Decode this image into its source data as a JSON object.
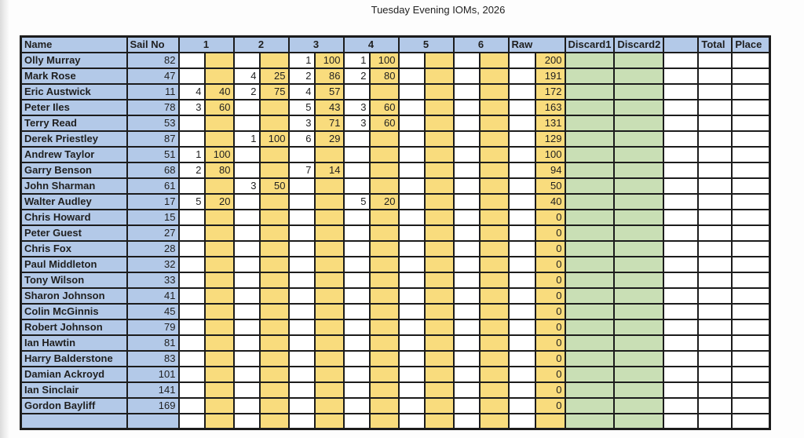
{
  "title": "Tuesday Evening IOMs, 2026",
  "colors": {
    "header_blue": "#b3c9e8",
    "points_yellow": "#f9dc7d",
    "discard_green": "#c9dfb5",
    "grid": "#1c1c1c"
  },
  "table": {
    "headers": {
      "name": "Name",
      "sail_no": "Sail No",
      "races": [
        "1",
        "2",
        "3",
        "4",
        "5",
        "6"
      ],
      "raw": "Raw",
      "discard1": "Discard1",
      "discard2": "Discard2",
      "spacer": "",
      "total": "Total",
      "place": "Place"
    },
    "rows": [
      {
        "name": "Olly Murray",
        "sail_no": "82",
        "races": [
          [
            "",
            ""
          ],
          [
            "",
            ""
          ],
          [
            "1",
            "100"
          ],
          [
            "1",
            "100"
          ],
          [
            "",
            ""
          ],
          [
            "",
            ""
          ]
        ],
        "raw": "200",
        "discard1": "",
        "discard2": "",
        "total": "",
        "place": ""
      },
      {
        "name": "Mark Rose",
        "sail_no": "47",
        "races": [
          [
            "",
            ""
          ],
          [
            "4",
            "25"
          ],
          [
            "2",
            "86"
          ],
          [
            "2",
            "80"
          ],
          [
            "",
            ""
          ],
          [
            "",
            ""
          ]
        ],
        "raw": "191",
        "discard1": "",
        "discard2": "",
        "total": "",
        "place": ""
      },
      {
        "name": "Eric Austwick",
        "sail_no": "11",
        "races": [
          [
            "4",
            "40"
          ],
          [
            "2",
            "75"
          ],
          [
            "4",
            "57"
          ],
          [
            "",
            ""
          ],
          [
            "",
            ""
          ],
          [
            "",
            ""
          ]
        ],
        "raw": "172",
        "discard1": "",
        "discard2": "",
        "total": "",
        "place": ""
      },
      {
        "name": "Peter Iles",
        "sail_no": "78",
        "races": [
          [
            "3",
            "60"
          ],
          [
            "",
            ""
          ],
          [
            "5",
            "43"
          ],
          [
            "3",
            "60"
          ],
          [
            "",
            ""
          ],
          [
            "",
            ""
          ]
        ],
        "raw": "163",
        "discard1": "",
        "discard2": "",
        "total": "",
        "place": ""
      },
      {
        "name": "Terry Read",
        "sail_no": "53",
        "races": [
          [
            "",
            ""
          ],
          [
            "",
            ""
          ],
          [
            "3",
            "71"
          ],
          [
            "3",
            "60"
          ],
          [
            "",
            ""
          ],
          [
            "",
            ""
          ]
        ],
        "raw": "131",
        "discard1": "",
        "discard2": "",
        "total": "",
        "place": ""
      },
      {
        "name": "Derek Priestley",
        "sail_no": "87",
        "races": [
          [
            "",
            ""
          ],
          [
            "1",
            "100"
          ],
          [
            "6",
            "29"
          ],
          [
            "",
            ""
          ],
          [
            "",
            ""
          ],
          [
            "",
            ""
          ]
        ],
        "raw": "129",
        "discard1": "",
        "discard2": "",
        "total": "",
        "place": ""
      },
      {
        "name": "Andrew Taylor",
        "sail_no": "51",
        "races": [
          [
            "1",
            "100"
          ],
          [
            "",
            ""
          ],
          [
            "",
            ""
          ],
          [
            "",
            ""
          ],
          [
            "",
            ""
          ],
          [
            "",
            ""
          ]
        ],
        "raw": "100",
        "discard1": "",
        "discard2": "",
        "total": "",
        "place": ""
      },
      {
        "name": "Garry Benson",
        "sail_no": "68",
        "races": [
          [
            "2",
            "80"
          ],
          [
            "",
            ""
          ],
          [
            "7",
            "14"
          ],
          [
            "",
            ""
          ],
          [
            "",
            ""
          ],
          [
            "",
            ""
          ]
        ],
        "raw": "94",
        "discard1": "",
        "discard2": "",
        "total": "",
        "place": ""
      },
      {
        "name": "John Sharman",
        "sail_no": "61",
        "races": [
          [
            "",
            ""
          ],
          [
            "3",
            "50"
          ],
          [
            "",
            ""
          ],
          [
            "",
            ""
          ],
          [
            "",
            ""
          ],
          [
            "",
            ""
          ]
        ],
        "raw": "50",
        "discard1": "",
        "discard2": "",
        "total": "",
        "place": ""
      },
      {
        "name": "Walter Audley",
        "sail_no": "17",
        "races": [
          [
            "5",
            "20"
          ],
          [
            "",
            ""
          ],
          [
            "",
            ""
          ],
          [
            "5",
            "20"
          ],
          [
            "",
            ""
          ],
          [
            "",
            ""
          ]
        ],
        "raw": "40",
        "discard1": "",
        "discard2": "",
        "total": "",
        "place": ""
      },
      {
        "name": "Chris Howard",
        "sail_no": "15",
        "races": [],
        "raw": "0",
        "discard1": "",
        "discard2": "",
        "total": "",
        "place": ""
      },
      {
        "name": "Peter Guest",
        "sail_no": "27",
        "races": [],
        "raw": "0",
        "discard1": "",
        "discard2": "",
        "total": "",
        "place": ""
      },
      {
        "name": "Chris Fox",
        "sail_no": "28",
        "races": [],
        "raw": "0",
        "discard1": "",
        "discard2": "",
        "total": "",
        "place": ""
      },
      {
        "name": "Paul Middleton",
        "sail_no": "32",
        "races": [],
        "raw": "0",
        "discard1": "",
        "discard2": "",
        "total": "",
        "place": ""
      },
      {
        "name": "Tony Wilson",
        "sail_no": "33",
        "races": [],
        "raw": "0",
        "discard1": "",
        "discard2": "",
        "total": "",
        "place": ""
      },
      {
        "name": "Sharon Johnson",
        "sail_no": "41",
        "races": [],
        "raw": "0",
        "discard1": "",
        "discard2": "",
        "total": "",
        "place": ""
      },
      {
        "name": "Colin McGinnis",
        "sail_no": "45",
        "races": [],
        "raw": "0",
        "discard1": "",
        "discard2": "",
        "total": "",
        "place": ""
      },
      {
        "name": "Robert Johnson",
        "sail_no": "79",
        "races": [],
        "raw": "0",
        "discard1": "",
        "discard2": "",
        "total": "",
        "place": ""
      },
      {
        "name": "Ian Hawtin",
        "sail_no": "81",
        "races": [],
        "raw": "0",
        "discard1": "",
        "discard2": "",
        "total": "",
        "place": ""
      },
      {
        "name": "Harry Balderstone",
        "sail_no": "83",
        "races": [],
        "raw": "0",
        "discard1": "",
        "discard2": "",
        "total": "",
        "place": ""
      },
      {
        "name": "Damian Ackroyd",
        "sail_no": "101",
        "races": [],
        "raw": "0",
        "discard1": "",
        "discard2": "",
        "total": "",
        "place": ""
      },
      {
        "name": "Ian Sinclair",
        "sail_no": "141",
        "races": [],
        "raw": "0",
        "discard1": "",
        "discard2": "",
        "total": "",
        "place": ""
      },
      {
        "name": "Gordon Bayliff",
        "sail_no": "169",
        "races": [],
        "raw": "0",
        "discard1": "",
        "discard2": "",
        "total": "",
        "place": ""
      },
      {
        "name": "",
        "sail_no": "",
        "races": [],
        "raw": "",
        "discard1": "",
        "discard2": "",
        "total": "",
        "place": ""
      }
    ]
  }
}
